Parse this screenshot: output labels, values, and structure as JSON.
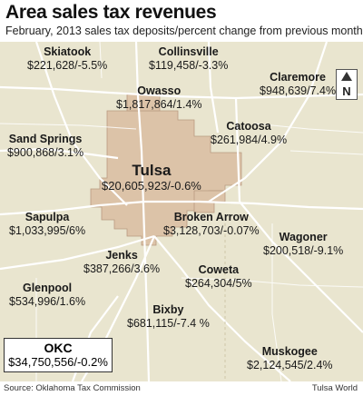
{
  "title": "Area sales tax revenues",
  "subtitle": "February, 2013 sales tax deposits/percent change from previous month",
  "compass_label": "N",
  "cities": {
    "skiatook": {
      "name": "Skiatook",
      "value": "$221,628/-5.5%"
    },
    "collinsville": {
      "name": "Collinsville",
      "value": "$119,458/-3.3%"
    },
    "claremore": {
      "name": "Claremore",
      "value": "$948,639/7.4%"
    },
    "owasso": {
      "name": "Owasso",
      "value": "$1,817,864/1.4%"
    },
    "catoosa": {
      "name": "Catoosa",
      "value": "$261,984/4.9%"
    },
    "sand_springs": {
      "name": "Sand Springs",
      "value": "$900,868/3.1%"
    },
    "tulsa": {
      "name": "Tulsa",
      "value": "$20,605,923/-0.6%"
    },
    "sapulpa": {
      "name": "Sapulpa",
      "value": "$1,033,995/6%"
    },
    "broken_arrow": {
      "name": "Broken Arrow",
      "value": "$3,128,703/-0.07%"
    },
    "wagoner": {
      "name": "Wagoner",
      "value": "$200,518/-9.1%"
    },
    "jenks": {
      "name": "Jenks",
      "value": "$387,266/3.6%"
    },
    "coweta": {
      "name": "Coweta",
      "value": "$264,304/5%"
    },
    "glenpool": {
      "name": "Glenpool",
      "value": "$534,996/1.6%"
    },
    "bixby": {
      "name": "Bixby",
      "value": "$681,115/-7.4 %"
    },
    "muskogee": {
      "name": "Muskogee",
      "value": "$2,124,545/2.4%"
    }
  },
  "okc": {
    "name": "OKC",
    "value": "$34,750,556/-0.2%"
  },
  "footer": {
    "source": "Source: Oklahoma Tax Commission",
    "credit": "Tulsa World"
  },
  "colors": {
    "map_background": "#e9e5cf",
    "tulsa_area": "#dcc3a8",
    "roads": "#ffffff",
    "text": "#1a1a1a"
  }
}
